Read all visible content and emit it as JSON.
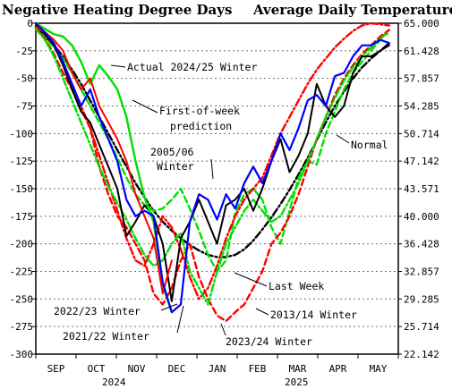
{
  "chart_data": {
    "type": "line",
    "title_left": "Negative Heating Degree Days",
    "title_right": "Average Daily Temperature °F",
    "y_left": {
      "range": [
        -300,
        0
      ],
      "ticks": [
        0,
        -25,
        -50,
        -75,
        -100,
        -125,
        -150,
        -175,
        -200,
        -225,
        -250,
        -275,
        -300
      ],
      "tick_labels": [
        "0",
        "-25",
        "-50",
        "-75",
        "-100",
        "-125",
        "-150",
        "-175",
        "-200",
        "-225",
        "-250",
        "-275",
        "-300"
      ]
    },
    "y_right": {
      "tick_labels": [
        "65.000",
        "61.428",
        "57.857",
        "54.285",
        "50.714",
        "47.142",
        "43.571",
        "40.000",
        "36.428",
        "32.857",
        "29.285",
        "25.714",
        "22.142"
      ]
    },
    "x_axis": {
      "unit": "weeks since Sep 1",
      "range": [
        0,
        40
      ],
      "months": [
        "SEP",
        "OCT",
        "NOV",
        "DEC",
        "JAN",
        "FEB",
        "MAR",
        "APR",
        "MAY"
      ],
      "year_labels": [
        "2024",
        "2025"
      ]
    },
    "grid": true,
    "series": [
      {
        "key": "normal",
        "color": "#000000",
        "style": "dashdot",
        "width": 2.4,
        "x": [
          0,
          1,
          2,
          3,
          4,
          5,
          6,
          7,
          8,
          9,
          10,
          11,
          12,
          13,
          14,
          15,
          16,
          17,
          18,
          19,
          20,
          21,
          22,
          23,
          24,
          25,
          26,
          27,
          28,
          29,
          30,
          31,
          32,
          33,
          34,
          35,
          36,
          37,
          38,
          39
        ],
        "y": [
          -5,
          -12,
          -20,
          -30,
          -42,
          -55,
          -70,
          -85,
          -100,
          -115,
          -130,
          -145,
          -158,
          -170,
          -180,
          -188,
          -195,
          -201,
          -206,
          -210,
          -212,
          -212,
          -210,
          -205,
          -197,
          -187,
          -176,
          -164,
          -151,
          -137,
          -122,
          -106,
          -90,
          -75,
          -62,
          -50,
          -40,
          -32,
          -25,
          -18
        ]
      },
      {
        "key": "s2005",
        "color": "#00e000",
        "style": "dashed",
        "width": 2.4,
        "x": [
          0,
          1,
          2,
          3,
          4,
          5,
          6,
          7,
          8,
          9,
          10,
          11,
          12,
          13,
          14,
          15,
          16,
          17,
          18,
          19,
          20,
          21,
          22,
          23,
          24,
          25,
          26,
          27,
          28,
          29,
          30,
          31,
          32,
          33,
          34,
          35,
          36,
          37,
          38,
          39
        ],
        "y": [
          -3,
          -12,
          -22,
          -32,
          -45,
          -60,
          -75,
          -90,
          -105,
          -122,
          -140,
          -155,
          -165,
          -170,
          -168,
          -160,
          -150,
          -168,
          -188,
          -210,
          -225,
          -215,
          -172,
          -155,
          -150,
          -160,
          -185,
          -200,
          -170,
          -140,
          -125,
          -128,
          -100,
          -80,
          -60,
          -45,
          -35,
          -25,
          -15,
          -5
        ]
      },
      {
        "key": "s2013",
        "color": "#ff0000",
        "style": "dashed",
        "width": 2.4,
        "x": [
          0,
          1,
          2,
          3,
          4,
          5,
          6,
          7,
          8,
          9,
          10,
          11,
          12,
          13,
          14,
          15,
          16,
          17,
          18,
          19,
          20,
          21,
          22,
          23,
          24,
          25,
          26,
          27,
          28,
          29,
          30,
          31,
          32,
          33,
          34,
          35,
          36,
          37,
          38,
          39
        ],
        "y": [
          -4,
          -14,
          -28,
          -45,
          -60,
          -78,
          -95,
          -130,
          -155,
          -175,
          -185,
          -200,
          -215,
          -245,
          -255,
          -240,
          -215,
          -200,
          -230,
          -250,
          -265,
          -270,
          -262,
          -255,
          -240,
          -225,
          -200,
          -190,
          -175,
          -155,
          -130,
          -105,
          -85,
          -65,
          -50,
          -38,
          -28,
          -20,
          -12,
          -6
        ]
      },
      {
        "key": "s2021",
        "color": "#ff0000",
        "style": "dashdot",
        "width": 2.4,
        "x": [
          0,
          1,
          2,
          3,
          4,
          5,
          6,
          7,
          8,
          9,
          10,
          11,
          12,
          13,
          14,
          15,
          16,
          17,
          18,
          19,
          20,
          21,
          22,
          23,
          24,
          25,
          26,
          27,
          28,
          29,
          30,
          31,
          32,
          33,
          34,
          35,
          36,
          37,
          38,
          39
        ],
        "y": [
          -2,
          -10,
          -20,
          -35,
          -55,
          -75,
          -95,
          -120,
          -145,
          -170,
          -195,
          -215,
          -220,
          -200,
          -175,
          -185,
          -205,
          -230,
          -250,
          -240,
          -220,
          -195,
          -175,
          -160,
          -150,
          -140,
          -120,
          -100,
          -85,
          -70,
          -55,
          -42,
          -32,
          -22,
          -14,
          -7,
          -2,
          0,
          -1,
          -2
        ]
      },
      {
        "key": "s2023",
        "color": "#00e000",
        "style": "dashdot",
        "width": 2.4,
        "x": [
          0,
          1,
          2,
          3,
          4,
          5,
          6,
          7,
          8,
          9,
          10,
          11,
          12,
          13,
          14,
          15,
          16,
          17,
          18,
          19,
          20,
          21,
          22,
          23,
          24,
          25,
          26,
          27,
          28,
          29,
          30,
          31,
          32,
          33,
          34,
          35,
          36,
          37,
          38,
          39
        ],
        "y": [
          -5,
          -15,
          -30,
          -50,
          -70,
          -90,
          -110,
          -130,
          -148,
          -163,
          -178,
          -195,
          -210,
          -220,
          -215,
          -200,
          -190,
          -225,
          -240,
          -255,
          -225,
          -200,
          -185,
          -170,
          -160,
          -170,
          -180,
          -175,
          -160,
          -145,
          -125,
          -105,
          -85,
          -68,
          -52,
          -40,
          -30,
          -22,
          -14,
          -8
        ]
      },
      {
        "key": "s2022",
        "color": "#000000",
        "style": "solid",
        "width": 2.0,
        "x": [
          0,
          1,
          2,
          3,
          4,
          5,
          6,
          7,
          8,
          9,
          10,
          11,
          12,
          13,
          14,
          15,
          16,
          17,
          18,
          19,
          20,
          21,
          22,
          23,
          24,
          25,
          26,
          27,
          28,
          29,
          30,
          31,
          32,
          33,
          34,
          35,
          36,
          37,
          38,
          39
        ],
        "y": [
          -2,
          -10,
          -20,
          -38,
          -60,
          -80,
          -90,
          -110,
          -130,
          -150,
          -193,
          -180,
          -165,
          -175,
          -200,
          -252,
          -195,
          -180,
          -160,
          -180,
          -200,
          -165,
          -160,
          -150,
          -170,
          -150,
          -125,
          -105,
          -135,
          -120,
          -100,
          -55,
          -75,
          -85,
          -75,
          -45,
          -30,
          -30,
          -25,
          -20
        ]
      },
      {
        "key": "actual",
        "color": "#00e000",
        "style": "solid",
        "width": 2.4,
        "x": [
          0,
          1,
          2,
          3,
          4,
          5,
          6,
          7,
          8,
          9,
          10,
          11,
          12,
          13,
          14,
          15
        ],
        "y": [
          0,
          -5,
          -10,
          -12,
          -20,
          -35,
          -55,
          -38,
          -48,
          -60,
          -85,
          -125,
          -158,
          -180,
          -238,
          -262
        ]
      },
      {
        "key": "first_week",
        "color": "#ff0000",
        "style": "solid",
        "width": 2.0,
        "x": [
          0,
          1,
          2,
          3,
          4,
          5,
          6,
          7,
          8,
          9,
          10,
          11,
          12,
          13,
          14,
          15
        ],
        "y": [
          -3,
          -8,
          -15,
          -25,
          -45,
          -60,
          -50,
          -75,
          -90,
          -105,
          -125,
          -155,
          -175,
          -195,
          -245,
          -215
        ]
      },
      {
        "key": "last_week",
        "color": "#0000ff",
        "style": "solid",
        "width": 2.2,
        "x": [
          0,
          1,
          2,
          3,
          4,
          5,
          6,
          7,
          8,
          9,
          10,
          11,
          12,
          13,
          14,
          15,
          16,
          17,
          18,
          19,
          20,
          21,
          22,
          23,
          24,
          25,
          26,
          27,
          28,
          29,
          30,
          31,
          32,
          33,
          34,
          35,
          36,
          37,
          38,
          39
        ],
        "y": [
          0,
          -8,
          -18,
          -35,
          -55,
          -75,
          -60,
          -85,
          -105,
          -125,
          -160,
          -175,
          -170,
          -175,
          -235,
          -262,
          -255,
          -180,
          -155,
          -160,
          -178,
          -155,
          -168,
          -145,
          -130,
          -145,
          -125,
          -100,
          -115,
          -95,
          -70,
          -65,
          -75,
          -48,
          -45,
          -30,
          -20,
          -20,
          -15,
          -18
        ]
      }
    ],
    "annotations": [
      {
        "key": "actual",
        "text": "Actual 2024/25 Winter"
      },
      {
        "key": "firstweek",
        "text": "First-of-week"
      },
      {
        "key": "prediction",
        "text": "prediction"
      },
      {
        "key": "season0506",
        "text": "2005/06"
      },
      {
        "key": "winter0506",
        "text": "Winter"
      },
      {
        "key": "normal",
        "text": "Normal"
      },
      {
        "key": "lastweek",
        "text": "Last Week"
      },
      {
        "key": "s2022",
        "text": "2022/23 Winter"
      },
      {
        "key": "s2013",
        "text": "2013/14 Winter"
      },
      {
        "key": "s2021",
        "text": "2021/22 Winter"
      },
      {
        "key": "s2023",
        "text": "2023/24 Winter"
      }
    ]
  }
}
